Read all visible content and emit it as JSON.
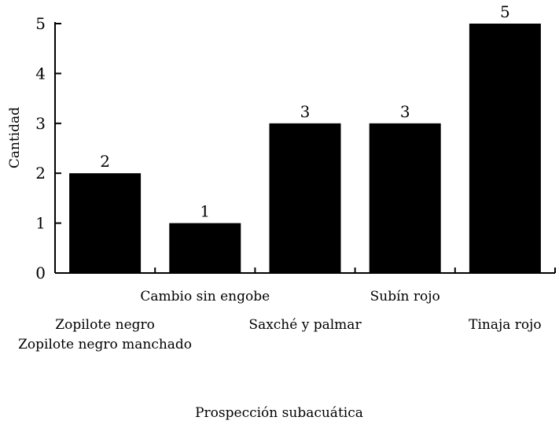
{
  "chart_data": {
    "type": "bar",
    "title": "",
    "xlabel": "Prospección subacuática",
    "ylabel": "Cantidad",
    "ylim": [
      0,
      5
    ],
    "yticks": [
      0,
      1,
      2,
      3,
      4,
      5
    ],
    "grid": false,
    "legend": "none",
    "categories": [
      [
        "Zopilote negro",
        "Zopilote negro manchado"
      ],
      [
        "Cambio sin engobe"
      ],
      [
        "Saxché y palmar"
      ],
      [
        "Subín rojo"
      ],
      [
        "Tinaja rojo"
      ]
    ],
    "values": [
      2,
      1,
      3,
      3,
      5
    ],
    "data_labels": [
      "2",
      "1",
      "3",
      "3",
      "5"
    ],
    "bar_color": "#000000"
  }
}
